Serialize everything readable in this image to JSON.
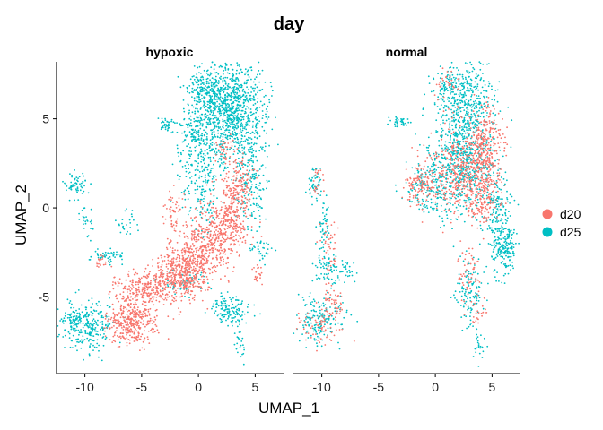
{
  "chart_data": {
    "type": "scatter",
    "title": "day",
    "xlabel": "UMAP_1",
    "ylabel": "UMAP_2",
    "panels": [
      {
        "name": "hypoxic",
        "xlim": [
          -12.5,
          7.5
        ],
        "ylim": [
          -9.3,
          8.2
        ]
      },
      {
        "name": "normal",
        "xlim": [
          -12.5,
          7.5
        ],
        "ylim": [
          -9.3,
          8.2
        ]
      }
    ],
    "x_ticks": [
      -10,
      -5,
      0,
      5
    ],
    "y_ticks": [
      -5,
      0,
      5
    ],
    "legend_position": "right",
    "grid": false,
    "series": [
      {
        "name": "d20",
        "color": "#F8766D"
      },
      {
        "name": "d25",
        "color": "#00BFC4"
      }
    ],
    "clusters": {
      "hypoxic": [
        {
          "series": 1,
          "cx": 2.8,
          "cy": 5.5,
          "sx": 1.4,
          "sy": 1.4,
          "n": 950
        },
        {
          "series": 1,
          "cx": 0.8,
          "cy": 6.6,
          "sx": 0.9,
          "sy": 0.6,
          "n": 220
        },
        {
          "series": 1,
          "cx": -0.5,
          "cy": 4.2,
          "sx": 0.6,
          "sy": 0.8,
          "n": 90
        },
        {
          "series": 1,
          "cx": 0.3,
          "cy": 1.8,
          "sx": 1.0,
          "sy": 1.5,
          "n": 240
        },
        {
          "series": 1,
          "cx": 4.6,
          "cy": 1.5,
          "sx": 0.7,
          "sy": 1.6,
          "n": 180
        },
        {
          "series": 1,
          "cx": -2.8,
          "cy": 4.7,
          "sx": 0.3,
          "sy": 0.2,
          "n": 40
        },
        {
          "series": 1,
          "cx": -10.7,
          "cy": 1.3,
          "sx": 0.5,
          "sy": 0.4,
          "n": 60
        },
        {
          "series": 1,
          "cx": -9.8,
          "cy": -0.6,
          "sx": 0.3,
          "sy": 0.5,
          "n": 25
        },
        {
          "series": 1,
          "cx": -9.8,
          "cy": -6.6,
          "sx": 1.2,
          "sy": 0.7,
          "n": 260
        },
        {
          "series": 1,
          "cx": -11.2,
          "cy": -6.2,
          "sx": 0.4,
          "sy": 0.4,
          "n": 50
        },
        {
          "series": 1,
          "cx": -7.9,
          "cy": -2.7,
          "sx": 0.7,
          "sy": 0.2,
          "n": 50
        },
        {
          "series": 1,
          "cx": 2.8,
          "cy": -5.7,
          "sx": 0.9,
          "sy": 0.4,
          "n": 140
        },
        {
          "series": 1,
          "cx": 3.6,
          "cy": -7.7,
          "sx": 0.3,
          "sy": 0.5,
          "n": 25
        },
        {
          "series": 1,
          "cx": -6.2,
          "cy": -0.8,
          "sx": 0.5,
          "sy": 0.4,
          "n": 25
        },
        {
          "series": 1,
          "cx": 5.5,
          "cy": -2.4,
          "sx": 0.5,
          "sy": 0.3,
          "n": 35
        },
        {
          "series": 1,
          "cx": -1.0,
          "cy": -4.0,
          "sx": 1.0,
          "sy": 0.4,
          "n": 60
        },
        {
          "series": 0,
          "cx": -6.0,
          "cy": -6.5,
          "sx": 1.0,
          "sy": 0.6,
          "n": 380
        },
        {
          "series": 0,
          "cx": -4.6,
          "cy": -4.5,
          "sx": 1.3,
          "sy": 0.5,
          "n": 280
        },
        {
          "series": 0,
          "cx": -1.5,
          "cy": -3.6,
          "sx": 1.0,
          "sy": 0.8,
          "n": 420
        },
        {
          "series": 0,
          "cx": 0.3,
          "cy": -2.4,
          "sx": 0.9,
          "sy": 0.9,
          "n": 280
        },
        {
          "series": 0,
          "cx": 2.5,
          "cy": -1.0,
          "sx": 1.0,
          "sy": 1.1,
          "n": 360
        },
        {
          "series": 0,
          "cx": 3.5,
          "cy": 1.3,
          "sx": 0.6,
          "sy": 0.8,
          "n": 140
        },
        {
          "series": 0,
          "cx": -2.2,
          "cy": -0.5,
          "sx": 0.4,
          "sy": 0.8,
          "n": 60
        },
        {
          "series": 0,
          "cx": 2.3,
          "cy": 3.1,
          "sx": 0.5,
          "sy": 0.5,
          "n": 40
        },
        {
          "series": 0,
          "cx": 5.2,
          "cy": -3.8,
          "sx": 0.3,
          "sy": 0.3,
          "n": 20
        },
        {
          "series": 0,
          "cx": -8.4,
          "cy": -3.0,
          "sx": 0.4,
          "sy": 0.2,
          "n": 20
        }
      ],
      "normal": [
        {
          "series": 1,
          "cx": 2.6,
          "cy": 5.5,
          "sx": 1.3,
          "sy": 1.4,
          "n": 520
        },
        {
          "series": 1,
          "cx": 2.4,
          "cy": 2.2,
          "sx": 1.5,
          "sy": 1.4,
          "n": 520
        },
        {
          "series": 1,
          "cx": 5.6,
          "cy": -1.0,
          "sx": 0.6,
          "sy": 1.5,
          "n": 220
        },
        {
          "series": 1,
          "cx": 6.3,
          "cy": -2.5,
          "sx": 0.4,
          "sy": 0.5,
          "n": 90
        },
        {
          "series": 1,
          "cx": -0.8,
          "cy": 1.2,
          "sx": 0.9,
          "sy": 0.8,
          "n": 140
        },
        {
          "series": 1,
          "cx": 1.0,
          "cy": 7.0,
          "sx": 0.7,
          "sy": 0.5,
          "n": 60
        },
        {
          "series": 1,
          "cx": -3.0,
          "cy": 4.8,
          "sx": 0.5,
          "sy": 0.2,
          "n": 35
        },
        {
          "series": 1,
          "cx": 3.2,
          "cy": -4.8,
          "sx": 0.7,
          "sy": 0.9,
          "n": 110
        },
        {
          "series": 1,
          "cx": 3.9,
          "cy": -7.7,
          "sx": 0.3,
          "sy": 0.5,
          "n": 25
        },
        {
          "series": 1,
          "cx": -10.6,
          "cy": 1.2,
          "sx": 0.3,
          "sy": 0.6,
          "n": 50
        },
        {
          "series": 1,
          "cx": -9.8,
          "cy": -1.2,
          "sx": 0.3,
          "sy": 0.9,
          "n": 50
        },
        {
          "series": 1,
          "cx": -9.3,
          "cy": -3.5,
          "sx": 0.6,
          "sy": 0.4,
          "n": 70
        },
        {
          "series": 1,
          "cx": -10.4,
          "cy": -6.3,
          "sx": 1.0,
          "sy": 0.7,
          "n": 170
        },
        {
          "series": 1,
          "cx": -7.8,
          "cy": -3.5,
          "sx": 0.4,
          "sy": 0.3,
          "n": 20
        },
        {
          "series": 0,
          "cx": 4.4,
          "cy": 3.6,
          "sx": 0.7,
          "sy": 1.1,
          "n": 260
        },
        {
          "series": 0,
          "cx": 2.5,
          "cy": 2.1,
          "sx": 1.4,
          "sy": 1.3,
          "n": 420
        },
        {
          "series": 0,
          "cx": -1.3,
          "cy": 1.3,
          "sx": 0.7,
          "sy": 0.6,
          "n": 120
        },
        {
          "series": 0,
          "cx": 4.4,
          "cy": 0.6,
          "sx": 0.6,
          "sy": 0.9,
          "n": 140
        },
        {
          "series": 0,
          "cx": 2.9,
          "cy": -3.6,
          "sx": 0.5,
          "sy": 0.9,
          "n": 60
        },
        {
          "series": 0,
          "cx": 3.8,
          "cy": -6.0,
          "sx": 0.4,
          "sy": 0.4,
          "n": 20
        },
        {
          "series": 0,
          "cx": 1.0,
          "cy": 7.0,
          "sx": 0.6,
          "sy": 0.4,
          "n": 30
        },
        {
          "series": 0,
          "cx": -10.5,
          "cy": 1.6,
          "sx": 0.3,
          "sy": 0.4,
          "n": 20
        },
        {
          "series": 0,
          "cx": -9.4,
          "cy": -2.2,
          "sx": 0.4,
          "sy": 0.8,
          "n": 40
        },
        {
          "series": 0,
          "cx": -9.2,
          "cy": -5.3,
          "sx": 0.5,
          "sy": 0.5,
          "n": 55
        },
        {
          "series": 0,
          "cx": -10.2,
          "cy": -6.8,
          "sx": 0.9,
          "sy": 0.5,
          "n": 60
        }
      ]
    }
  }
}
